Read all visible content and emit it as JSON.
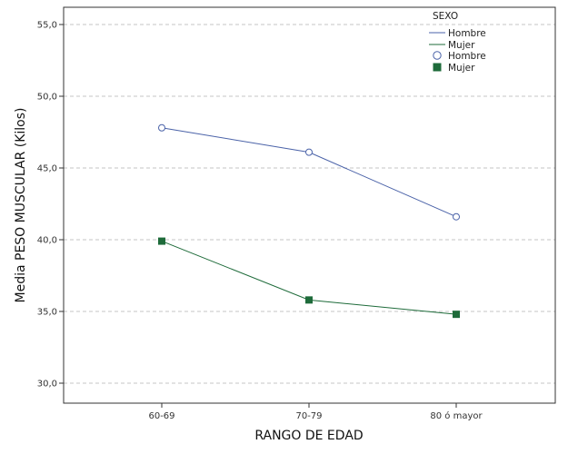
{
  "chart_data": {
    "type": "line",
    "title": "",
    "xlabel": "RANGO DE EDAD",
    "ylabel": "Media PESO MUSCULAR (Kilos)",
    "categories": [
      "60-69",
      "70-79",
      "80 ó mayor"
    ],
    "y_ticks": [
      "30,0",
      "35,0",
      "40,0",
      "45,0",
      "50,0",
      "55,0"
    ],
    "ylim": [
      30,
      55
    ],
    "grid": true,
    "legend_position": "top-right",
    "legend_title": "SEXO",
    "series": [
      {
        "name": "Hombre",
        "values": [
          47.8,
          46.1,
          41.6
        ],
        "color": "#4a62a8",
        "marker": "circle"
      },
      {
        "name": "Mujer",
        "values": [
          39.9,
          35.8,
          34.8
        ],
        "color": "#1e6b3a",
        "marker": "square"
      }
    ],
    "legend_entries": [
      {
        "label": "Hombre",
        "kind": "line",
        "series": 0
      },
      {
        "label": "Mujer",
        "kind": "line",
        "series": 1
      },
      {
        "label": "Hombre",
        "kind": "marker",
        "series": 0
      },
      {
        "label": "Mujer",
        "kind": "marker",
        "series": 1
      }
    ]
  }
}
